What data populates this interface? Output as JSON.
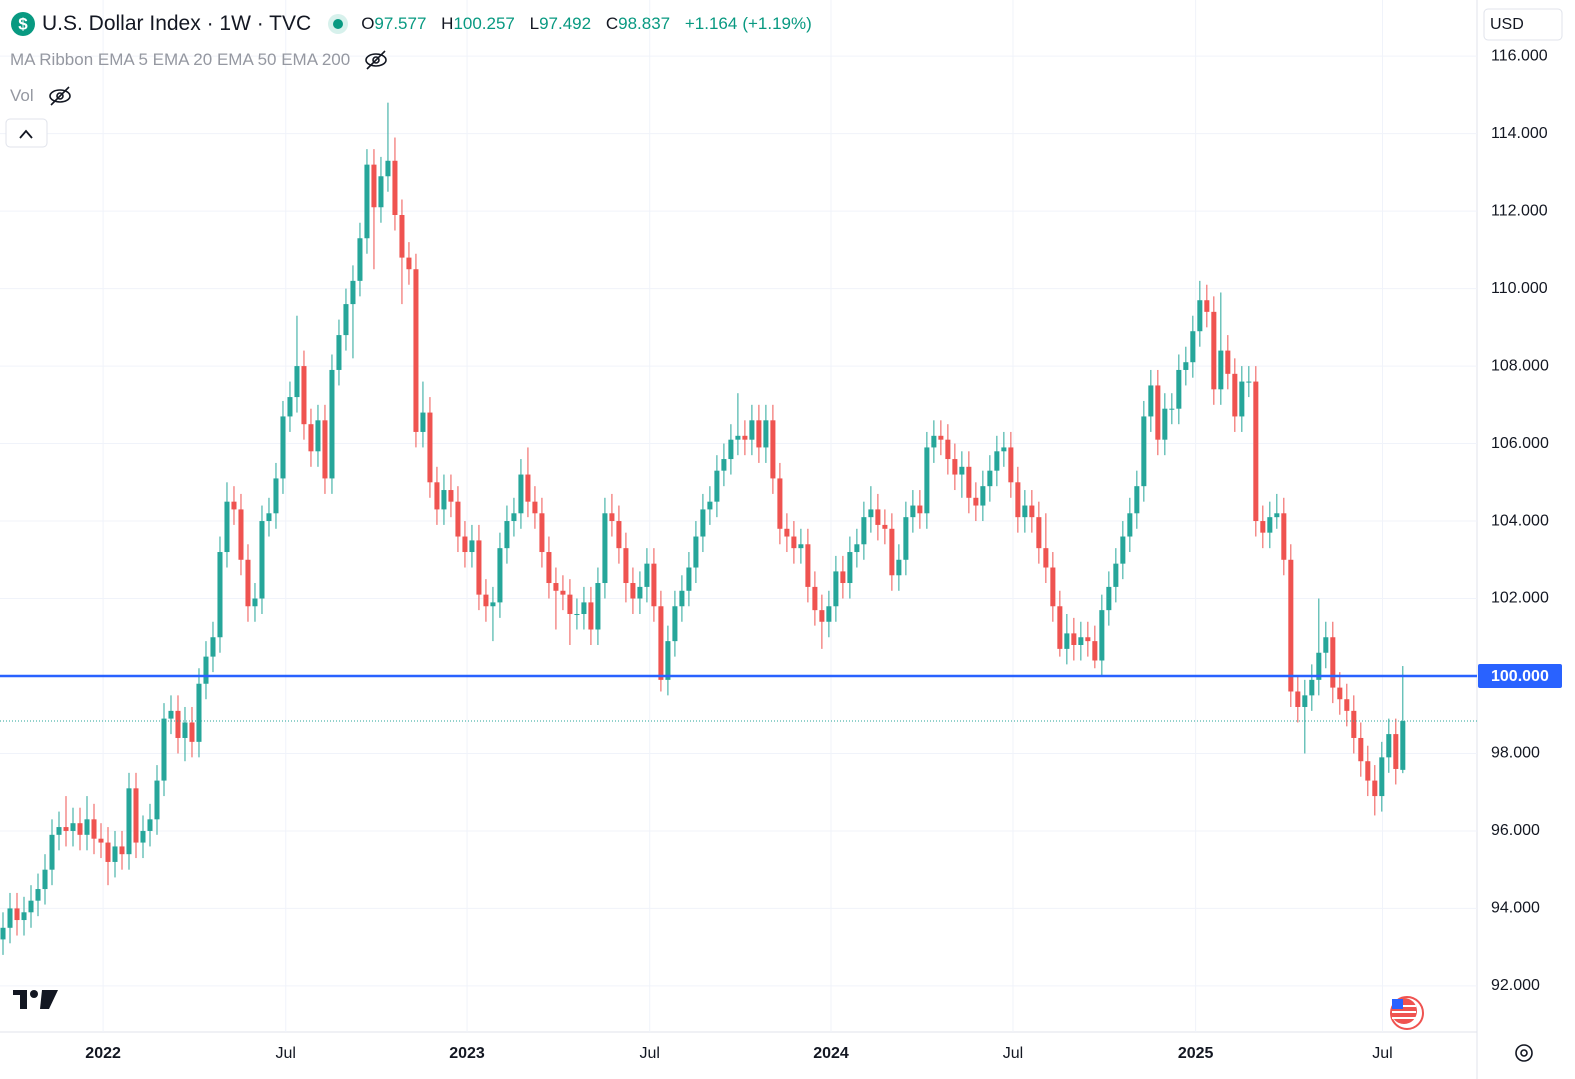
{
  "chart_data": {
    "type": "candlestick",
    "title": "U.S. Dollar Index · 1W · TVC",
    "legend_letters": {
      "open": "O",
      "high": "H",
      "low": "L",
      "close": "C"
    },
    "change": "+1.164",
    "change_percent": "(+1.19%)",
    "indicators": [
      "MA Ribbon EMA 5 EMA 20 EMA 50 EMA 200",
      "Vol"
    ],
    "currency": "USD",
    "colors": {
      "up": "#26a69a",
      "down": "#ef5350"
    },
    "grid": true,
    "hline": {
      "value": 100,
      "label": "100.000",
      "color": "#2962ff"
    },
    "xlim": [
      -0.43,
      210.6
    ],
    "xticks": [
      {
        "value": 14.3,
        "label": "2022"
      },
      {
        "value": 40.4,
        "label": "Jul"
      },
      {
        "value": 66.3,
        "label": "2023"
      },
      {
        "value": 92.4,
        "label": "Jul"
      },
      {
        "value": 118.3,
        "label": "2024"
      },
      {
        "value": 144.3,
        "label": "Jul"
      },
      {
        "value": 170.4,
        "label": "2025"
      },
      {
        "value": 197.1,
        "label": "Jul"
      }
    ],
    "ylim": [
      90.81,
      117.45
    ],
    "yticks": [
      {
        "value": 92,
        "label": "92.000"
      },
      {
        "value": 94,
        "label": "94.000"
      },
      {
        "value": 96,
        "label": "96.000"
      },
      {
        "value": 98,
        "label": "98.000"
      },
      {
        "value": 102,
        "label": "102.000"
      },
      {
        "value": 104,
        "label": "104.000"
      },
      {
        "value": 106,
        "label": "106.000"
      },
      {
        "value": 108,
        "label": "108.000"
      },
      {
        "value": 110,
        "label": "110.000"
      },
      {
        "value": 112,
        "label": "112.000"
      },
      {
        "value": 114,
        "label": "114.000"
      },
      {
        "value": 116,
        "label": "116.000"
      }
    ],
    "open": [
      93.2,
      93.5,
      94.0,
      93.7,
      93.9,
      94.2,
      94.5,
      95.0,
      95.9,
      96.1,
      96.0,
      96.2,
      95.9,
      96.3,
      95.8,
      95.7,
      95.2,
      95.6,
      95.4,
      97.1,
      95.7,
      96.0,
      96.3,
      97.3,
      98.9,
      99.1,
      98.4,
      98.8,
      98.3,
      99.8,
      100.5,
      101.0,
      103.2,
      104.5,
      104.3,
      103.0,
      101.8,
      102.0,
      104.0,
      104.2,
      105.1,
      106.7,
      107.2,
      108.0,
      106.5,
      105.8,
      106.6,
      105.1,
      107.9,
      108.8,
      109.6,
      110.2,
      111.3,
      113.2,
      112.1,
      112.9,
      113.3,
      111.9,
      110.8,
      110.5,
      106.3,
      106.8,
      105.0,
      104.3,
      104.8,
      104.5,
      103.6,
      103.2,
      103.5,
      102.1,
      101.8,
      101.9,
      103.3,
      104.0,
      104.2,
      105.2,
      104.5,
      104.2,
      103.2,
      102.4,
      102.2,
      102.1,
      101.6,
      101.6,
      101.9,
      101.2,
      102.4,
      104.2,
      104.0,
      103.3,
      102.4,
      102.0,
      102.3,
      102.9,
      101.8,
      99.9,
      100.9,
      101.8,
      102.2,
      102.8,
      103.6,
      104.3,
      104.5,
      105.3,
      105.6,
      106.1,
      106.2,
      106.1,
      106.6,
      105.9,
      106.6,
      105.1,
      103.8,
      103.6,
      103.3,
      103.4,
      102.3,
      101.7,
      101.4,
      101.8,
      102.7,
      102.4,
      103.2,
      103.4,
      104.1,
      104.3,
      103.9,
      103.8,
      102.6,
      103.0,
      104.1,
      104.4,
      104.2,
      105.9,
      106.2,
      106.1,
      105.6,
      105.2,
      105.4,
      104.6,
      104.4,
      104.9,
      105.3,
      105.8,
      105.9,
      105.0,
      104.1,
      104.4,
      104.1,
      103.3,
      102.8,
      101.8,
      100.7,
      101.1,
      100.8,
      101.0,
      100.9,
      100.4,
      101.7,
      102.3,
      102.9,
      103.6,
      104.2,
      104.9,
      106.7,
      107.5,
      106.1,
      106.9,
      106.9,
      107.9,
      108.1,
      108.9,
      109.7,
      109.4,
      107.4,
      108.4,
      107.8,
      106.7,
      107.6,
      107.6,
      104.0,
      103.7,
      104.1,
      104.2,
      103.0,
      99.6,
      99.2,
      99.5,
      99.9,
      100.6,
      101.0,
      99.7,
      99.4,
      99.1,
      98.4,
      97.8,
      97.3,
      96.9,
      97.9,
      98.5,
      97.577
    ],
    "high": [
      93.9,
      94.4,
      94.4,
      94.3,
      94.6,
      94.9,
      95.4,
      96.3,
      96.5,
      96.9,
      96.6,
      96.6,
      96.9,
      96.7,
      96.2,
      96.1,
      96.0,
      96.0,
      97.5,
      97.5,
      96.4,
      96.7,
      97.7,
      99.3,
      99.5,
      99.5,
      99.2,
      99.2,
      100.2,
      100.9,
      101.4,
      103.6,
      105.0,
      104.9,
      104.7,
      103.4,
      102.4,
      104.4,
      104.6,
      105.5,
      107.1,
      107.6,
      109.3,
      108.4,
      106.9,
      107.0,
      107.0,
      108.3,
      109.2,
      110.0,
      110.6,
      111.7,
      113.6,
      113.6,
      113.4,
      114.8,
      113.9,
      112.3,
      111.2,
      110.9,
      107.6,
      107.2,
      105.4,
      105.2,
      105.2,
      104.9,
      104.0,
      103.9,
      103.9,
      102.5,
      102.3,
      103.7,
      104.4,
      104.6,
      105.6,
      105.9,
      104.9,
      104.6,
      103.6,
      102.8,
      102.6,
      102.5,
      102.0,
      102.3,
      102.3,
      102.8,
      104.6,
      104.7,
      104.4,
      103.7,
      102.8,
      102.7,
      103.3,
      103.3,
      102.2,
      101.3,
      102.2,
      102.6,
      103.2,
      104.0,
      104.7,
      104.9,
      105.7,
      106.0,
      106.5,
      107.3,
      106.6,
      107.0,
      107.0,
      107.0,
      107.0,
      105.5,
      104.2,
      104.0,
      103.8,
      103.8,
      102.7,
      102.1,
      102.2,
      103.1,
      103.1,
      103.6,
      103.8,
      104.5,
      104.9,
      104.7,
      104.3,
      104.2,
      103.4,
      104.5,
      104.8,
      104.8,
      106.3,
      106.6,
      106.6,
      106.5,
      106.0,
      105.8,
      105.8,
      105.0,
      105.3,
      105.7,
      106.2,
      106.3,
      106.3,
      105.4,
      104.8,
      104.8,
      104.5,
      104.2,
      103.2,
      102.2,
      101.6,
      101.5,
      101.4,
      101.4,
      101.3,
      102.1,
      102.7,
      103.3,
      104.0,
      104.6,
      105.3,
      107.1,
      107.9,
      107.9,
      107.3,
      107.3,
      108.3,
      108.5,
      109.3,
      110.2,
      110.1,
      109.8,
      109.9,
      108.8,
      108.2,
      108.0,
      108.0,
      108.0,
      104.4,
      104.5,
      104.7,
      104.6,
      103.4,
      100.0,
      99.9,
      100.3,
      102.0,
      101.4,
      101.4,
      100.1,
      99.8,
      99.5,
      98.8,
      98.2,
      97.7,
      98.3,
      98.9,
      98.9,
      100.257
    ],
    "low": [
      92.8,
      93.1,
      93.3,
      93.3,
      93.5,
      93.8,
      94.1,
      94.6,
      95.5,
      95.6,
      95.6,
      95.5,
      95.5,
      95.4,
      95.3,
      94.6,
      94.8,
      95.0,
      95.0,
      95.3,
      95.3,
      95.6,
      95.9,
      96.9,
      98.5,
      98.0,
      97.8,
      97.9,
      97.9,
      99.4,
      100.1,
      100.6,
      102.8,
      103.9,
      102.6,
      101.4,
      101.4,
      101.6,
      103.6,
      103.8,
      104.7,
      106.3,
      106.8,
      106.1,
      105.4,
      105.4,
      104.7,
      104.7,
      107.5,
      108.4,
      108.2,
      109.8,
      110.9,
      110.5,
      111.7,
      112.5,
      111.5,
      109.6,
      110.1,
      105.9,
      105.9,
      104.6,
      103.9,
      103.9,
      104.1,
      103.2,
      102.8,
      102.8,
      101.7,
      101.4,
      100.9,
      101.5,
      102.9,
      103.6,
      103.8,
      104.1,
      103.8,
      102.8,
      102.0,
      101.2,
      101.7,
      100.8,
      101.2,
      101.2,
      100.8,
      100.8,
      102.0,
      103.6,
      102.9,
      101.9,
      101.6,
      101.6,
      101.9,
      101.4,
      99.6,
      99.5,
      100.5,
      101.4,
      101.8,
      102.4,
      103.2,
      103.9,
      104.1,
      104.9,
      105.2,
      105.7,
      105.7,
      105.7,
      105.5,
      105.5,
      104.7,
      103.4,
      103.2,
      102.9,
      102.9,
      101.9,
      101.3,
      100.7,
      101.0,
      101.4,
      102.0,
      102.0,
      102.8,
      103.0,
      103.7,
      103.5,
      103.4,
      102.2,
      102.2,
      102.6,
      103.7,
      103.8,
      103.8,
      105.5,
      105.7,
      105.2,
      104.8,
      104.6,
      104.2,
      104.0,
      104.0,
      104.5,
      104.9,
      105.4,
      104.6,
      103.7,
      103.7,
      103.7,
      102.9,
      102.4,
      101.4,
      100.5,
      100.3,
      100.4,
      100.4,
      100.5,
      100.2,
      100.0,
      101.3,
      101.9,
      102.5,
      103.2,
      103.8,
      104.5,
      106.3,
      105.7,
      105.7,
      106.5,
      106.5,
      107.5,
      107.7,
      108.5,
      109.0,
      107.0,
      107.0,
      107.4,
      106.3,
      106.3,
      107.2,
      103.6,
      103.3,
      103.3,
      103.8,
      102.6,
      99.2,
      98.8,
      98.0,
      99.1,
      99.5,
      100.2,
      99.3,
      99.0,
      98.7,
      98.0,
      97.4,
      96.9,
      96.4,
      96.5,
      97.5,
      97.2,
      97.492
    ],
    "close": [
      93.5,
      94.0,
      93.7,
      93.9,
      94.2,
      94.5,
      95.0,
      95.9,
      96.1,
      96.0,
      96.2,
      95.9,
      96.3,
      95.8,
      95.7,
      95.2,
      95.6,
      95.4,
      97.1,
      95.7,
      96.0,
      96.3,
      97.3,
      98.9,
      99.1,
      98.4,
      98.8,
      98.3,
      99.8,
      100.5,
      101.0,
      103.2,
      104.5,
      104.3,
      103.0,
      101.8,
      102.0,
      104.0,
      104.2,
      105.1,
      106.7,
      107.2,
      108.0,
      106.5,
      105.8,
      106.6,
      105.1,
      107.9,
      108.8,
      109.6,
      110.2,
      111.3,
      113.2,
      112.1,
      112.9,
      113.3,
      111.9,
      110.8,
      110.5,
      106.3,
      106.8,
      105.0,
      104.3,
      104.8,
      104.5,
      103.6,
      103.2,
      103.5,
      102.1,
      101.8,
      101.9,
      103.3,
      104.0,
      104.2,
      105.2,
      104.5,
      104.2,
      103.2,
      102.4,
      102.2,
      102.1,
      101.6,
      101.6,
      101.9,
      101.2,
      102.4,
      104.2,
      104.0,
      103.3,
      102.4,
      102.0,
      102.3,
      102.9,
      101.8,
      99.9,
      100.9,
      101.8,
      102.2,
      102.8,
      103.6,
      104.3,
      104.5,
      105.3,
      105.6,
      106.1,
      106.2,
      106.1,
      106.6,
      105.9,
      106.6,
      105.1,
      103.8,
      103.6,
      103.3,
      103.4,
      102.3,
      101.7,
      101.4,
      101.8,
      102.7,
      102.4,
      103.2,
      103.4,
      104.1,
      104.3,
      103.9,
      103.8,
      102.6,
      103.0,
      104.1,
      104.4,
      104.2,
      105.9,
      106.2,
      106.1,
      105.6,
      105.2,
      105.4,
      104.6,
      104.4,
      104.9,
      105.3,
      105.8,
      105.9,
      105.0,
      104.1,
      104.4,
      104.1,
      103.3,
      102.8,
      101.8,
      100.7,
      101.1,
      100.8,
      101.0,
      100.9,
      100.4,
      101.7,
      102.3,
      102.9,
      103.6,
      104.2,
      104.9,
      106.7,
      107.5,
      106.1,
      106.9,
      106.9,
      107.9,
      108.1,
      108.9,
      109.7,
      109.4,
      107.4,
      108.4,
      107.8,
      106.7,
      107.6,
      107.6,
      104.0,
      103.7,
      104.1,
      104.2,
      103.0,
      99.6,
      99.2,
      99.5,
      99.9,
      100.6,
      101.0,
      99.7,
      99.4,
      99.1,
      98.4,
      97.8,
      97.3,
      96.9,
      97.9,
      98.5,
      97.6,
      98.837
    ]
  }
}
